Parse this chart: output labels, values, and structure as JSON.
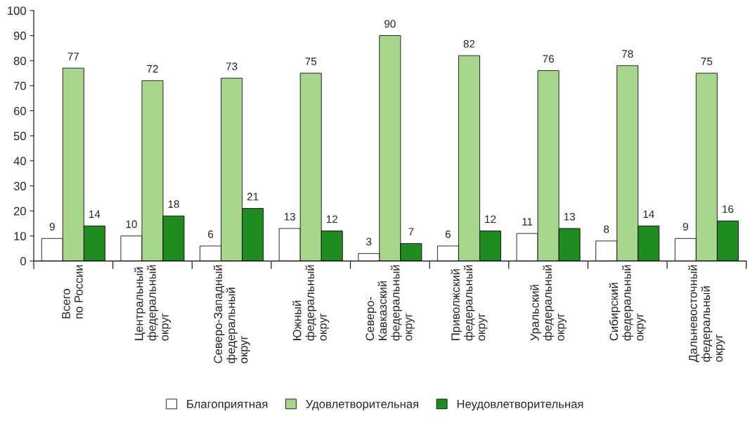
{
  "chart_data": {
    "type": "bar",
    "categories": [
      "Всего\nпо России",
      "Центральный\nфедеральный\nокруг",
      "Северо-Западный\nфедеральный\nокруг",
      "Южный\nфедеральный\nокруг",
      "Северо-\nКавказский\nфедеральный\nокруг",
      "Приволжский\nфедеральный\nокруг",
      "Уральский\nфедеральный\nокруг",
      "Сибирский\nфедеральный\nокруг",
      "Дальневосточный\nфедеральный\nокруг"
    ],
    "series": [
      {
        "name": "Благоприятная",
        "color": "#ffffff",
        "values": [
          9,
          10,
          6,
          13,
          3,
          6,
          11,
          8,
          9
        ]
      },
      {
        "name": "Удовлетворительная",
        "color": "#a8d68c",
        "values": [
          77,
          72,
          73,
          75,
          90,
          82,
          76,
          78,
          75
        ]
      },
      {
        "name": "Неудовлетворительная",
        "color": "#1e8c1e",
        "values": [
          14,
          18,
          21,
          12,
          7,
          12,
          13,
          14,
          16
        ]
      }
    ],
    "ylim": [
      0,
      100
    ],
    "yticks": [
      0,
      10,
      20,
      30,
      40,
      50,
      60,
      70,
      80,
      90,
      100
    ],
    "data_labels": true,
    "legend": "bottom",
    "grid": false
  }
}
